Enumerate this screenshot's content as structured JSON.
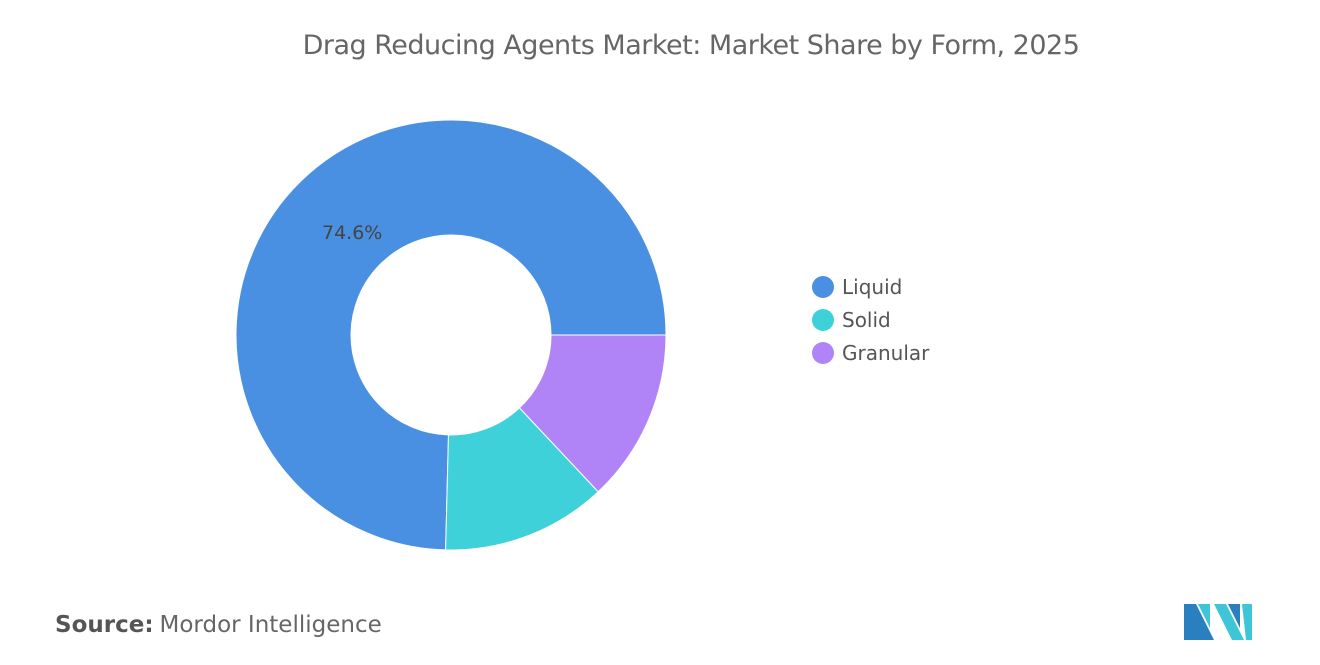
{
  "chart_data": {
    "type": "pie",
    "variant": "donut",
    "title": "Drag Reducing Agents Market: Market Share by Form, 2025",
    "categories": [
      "Liquid",
      "Solid",
      "Granular"
    ],
    "values": [
      74.6,
      12.4,
      13.0
    ],
    "data_labels": [
      "74.6%",
      "",
      ""
    ],
    "colors": [
      "#4a90e2",
      "#3ed1da",
      "#b084f7"
    ],
    "legend_position": "right"
  },
  "source": {
    "label": "Source:",
    "value": "Mordor Intelligence"
  },
  "logo": {
    "text": "Mordor Intelligence",
    "colors": [
      "#2a7fbf",
      "#3ec6d8"
    ]
  }
}
